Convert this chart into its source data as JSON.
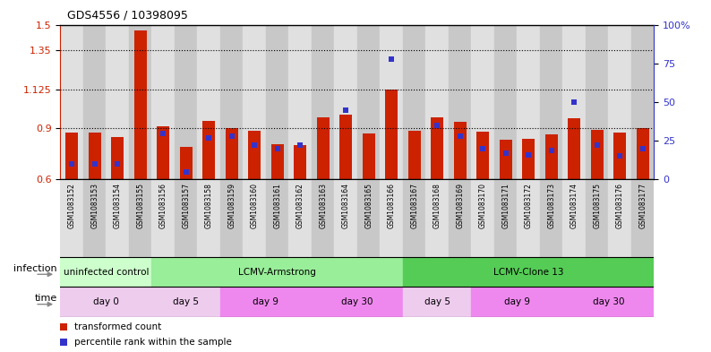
{
  "title": "GDS4556 / 10398095",
  "samples": [
    "GSM1083152",
    "GSM1083153",
    "GSM1083154",
    "GSM1083155",
    "GSM1083156",
    "GSM1083157",
    "GSM1083158",
    "GSM1083159",
    "GSM1083160",
    "GSM1083161",
    "GSM1083162",
    "GSM1083163",
    "GSM1083164",
    "GSM1083165",
    "GSM1083166",
    "GSM1083167",
    "GSM1083168",
    "GSM1083169",
    "GSM1083170",
    "GSM1083171",
    "GSM1083172",
    "GSM1083173",
    "GSM1083174",
    "GSM1083175",
    "GSM1083176",
    "GSM1083177"
  ],
  "red_values": [
    0.875,
    0.875,
    0.845,
    1.465,
    0.91,
    0.79,
    0.94,
    0.9,
    0.885,
    0.805,
    0.8,
    0.96,
    0.975,
    0.87,
    1.125,
    0.885,
    0.96,
    0.935,
    0.88,
    0.83,
    0.835,
    0.86,
    0.955,
    0.89,
    0.875,
    0.9
  ],
  "blue_percentiles": [
    10,
    10,
    10,
    null,
    30,
    5,
    27,
    28,
    22,
    20,
    22,
    null,
    45,
    null,
    78,
    null,
    35,
    28,
    20,
    17,
    16,
    19,
    50,
    22,
    15,
    20
  ],
  "y_min": 0.6,
  "y_max": 1.5,
  "y_ticks_left": [
    0.6,
    0.9,
    1.125,
    1.35,
    1.5
  ],
  "y_ticks_right": [
    0,
    25,
    50,
    75,
    100
  ],
  "y_tick_labels_right": [
    "0",
    "25",
    "50",
    "75",
    "100%"
  ],
  "grid_lines": [
    0.9,
    1.125,
    1.35
  ],
  "bar_color": "#cc2200",
  "dot_color": "#3333cc",
  "bar_width": 0.55,
  "infection_groups": [
    {
      "label": "uninfected control",
      "start": 0,
      "end": 3,
      "color": "#ccffcc"
    },
    {
      "label": "LCMV-Armstrong",
      "start": 4,
      "end": 14,
      "color": "#99ee99"
    },
    {
      "label": "LCMV-Clone 13",
      "start": 15,
      "end": 25,
      "color": "#55cc55"
    }
  ],
  "time_groups": [
    {
      "label": "day 0",
      "start": 0,
      "end": 3,
      "color": "#eeccee"
    },
    {
      "label": "day 5",
      "start": 4,
      "end": 6,
      "color": "#eeccee"
    },
    {
      "label": "day 9",
      "start": 7,
      "end": 10,
      "color": "#ee88ee"
    },
    {
      "label": "day 30",
      "start": 11,
      "end": 14,
      "color": "#ee88ee"
    },
    {
      "label": "day 5",
      "start": 15,
      "end": 17,
      "color": "#eeccee"
    },
    {
      "label": "day 9",
      "start": 18,
      "end": 21,
      "color": "#ee88ee"
    },
    {
      "label": "day 30",
      "start": 22,
      "end": 25,
      "color": "#ee88ee"
    }
  ],
  "legend_items": [
    {
      "label": "transformed count",
      "color": "#cc2200"
    },
    {
      "label": "percentile rank within the sample",
      "color": "#3333cc"
    }
  ],
  "bg_color": "#ffffff",
  "axis_color_left": "#cc2200",
  "axis_color_right": "#3333cc",
  "col_colors": [
    "#e0e0e0",
    "#c8c8c8"
  ]
}
